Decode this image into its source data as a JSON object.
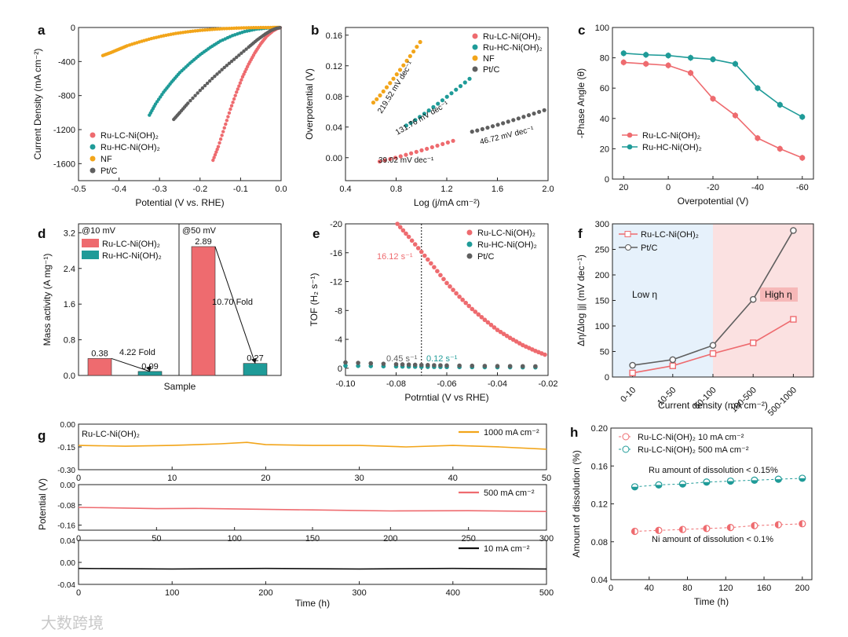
{
  "figure": {
    "watermark": "大数跨境"
  },
  "colors": {
    "red": "#ee6b6f",
    "teal": "#1f9b98",
    "orange": "#f2a51a",
    "gray": "#5f5f5f",
    "black": "#111111",
    "lowbg": "#e6f1fb",
    "highbg": "#fbe1e1"
  },
  "chart_data": [
    {
      "panel": "a",
      "type": "line",
      "xlabel": "Potential (V vs. RHE)",
      "ylabel": "Current Density (mA cm⁻²)",
      "xlim": [
        -0.5,
        0.0
      ],
      "ylim": [
        -1800,
        0
      ],
      "xticks": [
        "-0.5",
        "-0.4",
        "-0.3",
        "-0.2",
        "-0.1",
        "0.0"
      ],
      "yticks": [
        "0",
        "-400",
        "-800",
        "-1200",
        "-1600"
      ],
      "series": [
        {
          "name": "Ru-LC-Ni(OH)₂",
          "color": "red",
          "x": [
            -0.168,
            -0.155,
            -0.14,
            -0.125,
            -0.11,
            -0.095,
            -0.08,
            -0.065,
            -0.05,
            -0.035,
            -0.02,
            -0.01,
            0.0
          ],
          "y": [
            -1560,
            -1400,
            -1180,
            -960,
            -760,
            -580,
            -430,
            -300,
            -190,
            -100,
            -40,
            -12,
            0
          ]
        },
        {
          "name": "Ru-HC-Ni(OH)₂",
          "color": "teal",
          "x": [
            -0.325,
            -0.31,
            -0.29,
            -0.27,
            -0.25,
            -0.225,
            -0.2,
            -0.175,
            -0.15,
            -0.12,
            -0.09,
            -0.06,
            -0.03,
            0.0
          ],
          "y": [
            -1030,
            -900,
            -760,
            -640,
            -530,
            -420,
            -320,
            -235,
            -160,
            -95,
            -48,
            -18,
            -5,
            0
          ]
        },
        {
          "name": "NF",
          "color": "orange",
          "x": [
            -0.44,
            -0.42,
            -0.4,
            -0.38,
            -0.35,
            -0.32,
            -0.29,
            -0.26,
            -0.23,
            -0.2,
            -0.17,
            -0.14,
            -0.11,
            -0.08,
            -0.05,
            -0.02,
            0.0
          ],
          "y": [
            -330,
            -295,
            -255,
            -215,
            -170,
            -130,
            -97,
            -70,
            -50,
            -34,
            -22,
            -13,
            -7,
            -3,
            -1,
            0,
            0
          ]
        },
        {
          "name": "Pt/C",
          "color": "gray",
          "x": [
            -0.265,
            -0.25,
            -0.23,
            -0.2,
            -0.17,
            -0.14,
            -0.11,
            -0.08,
            -0.06,
            -0.04,
            -0.025,
            -0.012,
            0.0
          ],
          "y": [
            -1080,
            -1000,
            -890,
            -740,
            -600,
            -470,
            -350,
            -230,
            -150,
            -80,
            -36,
            -10,
            0
          ]
        }
      ]
    },
    {
      "panel": "b",
      "type": "scatter",
      "xlabel": "Log (j/mA cm⁻²)",
      "ylabel": "Overpotential (V)",
      "xlim": [
        0.4,
        2.0
      ],
      "ylim": [
        -0.03,
        0.17
      ],
      "xticks": [
        "0.4",
        "0.8",
        "1.2",
        "1.6",
        "2.0"
      ],
      "yticks": [
        "0.00",
        "0.04",
        "0.08",
        "0.12",
        "0.16"
      ],
      "series": [
        {
          "name": "Ru-LC-Ni(OH)₂",
          "color": "red",
          "x0": 0.67,
          "x1": 1.25,
          "y0": -0.005,
          "y1": 0.022,
          "slope_label": "39.02 mV dec⁻¹"
        },
        {
          "name": "Ru-HC-Ni(OH)₂",
          "color": "teal",
          "x0": 0.88,
          "x1": 1.38,
          "y0": 0.042,
          "y1": 0.103,
          "slope_label": "131.76 mV dec⁻¹"
        },
        {
          "name": "NF",
          "color": "orange",
          "x0": 0.62,
          "x1": 0.99,
          "y0": 0.072,
          "y1": 0.151,
          "slope_label": "219.52 mV dec⁻¹"
        },
        {
          "name": "Pt/C",
          "color": "gray",
          "x0": 1.4,
          "x1": 1.97,
          "y0": 0.034,
          "y1": 0.062,
          "slope_label": "46.72 mV dec⁻¹"
        }
      ]
    },
    {
      "panel": "c",
      "type": "line",
      "xlabel": "Overpotential (V)",
      "ylabel": "-Phase Angle (θ)",
      "xlim": [
        25,
        -65
      ],
      "ylim": [
        0,
        100
      ],
      "xticks": [
        "20",
        "0",
        "-20",
        "-40",
        "-60"
      ],
      "yticks": [
        "0",
        "20",
        "40",
        "60",
        "80",
        "100"
      ],
      "x": [
        20,
        10,
        0,
        -10,
        -20,
        -30,
        -40,
        -50,
        -60
      ],
      "series": [
        {
          "name": "Ru-LC-Ni(OH)₂",
          "color": "red",
          "values": [
            77,
            76,
            75,
            70,
            53,
            42,
            27,
            20,
            14
          ]
        },
        {
          "name": "Ru-HC-Ni(OH)₂",
          "color": "teal",
          "values": [
            83,
            82,
            81.5,
            80,
            79,
            76,
            60,
            49,
            41
          ]
        }
      ]
    },
    {
      "panel": "d",
      "type": "bar",
      "xlabel": "Sample",
      "ylabel": "Mass activity (A mg⁻¹)",
      "ylim": [
        0,
        3.4
      ],
      "yticks": [
        "0.0",
        "0.8",
        "1.6",
        "2.4",
        "3.2"
      ],
      "groups": [
        {
          "label": "@10 mV",
          "values": [
            0.38,
            0.09
          ],
          "value_labels": [
            "0.38",
            "0.09"
          ],
          "fold": "4.22 Fold"
        },
        {
          "label": "@50 mV",
          "values": [
            2.89,
            0.27
          ],
          "value_labels": [
            "2.89",
            "0.27"
          ],
          "fold": "10.70 Fold"
        }
      ],
      "series": [
        {
          "name": "Ru-LC-Ni(OH)₂",
          "color": "red"
        },
        {
          "name": "Ru-HC-Ni(OH)₂",
          "color": "teal"
        }
      ]
    },
    {
      "panel": "e",
      "type": "scatter",
      "xlabel": "Potrntial (V vs RHE)",
      "ylabel": "TOF (H₂ s⁻¹)",
      "xlim": [
        -0.1,
        -0.02
      ],
      "ylim": [
        1,
        -20
      ],
      "xticks": [
        "-0.10",
        "-0.08",
        "-0.06",
        "-0.04",
        "-0.02"
      ],
      "yticks": [
        "-20",
        "-16",
        "-12",
        "-8",
        "-4",
        "0"
      ],
      "marker_x": -0.07,
      "annotations": [
        "16.12 s⁻¹",
        "0.45 s⁻¹",
        "0.12 s⁻¹"
      ],
      "series": [
        {
          "name": "Ru-LC-Ni(OH)₂",
          "color": "red",
          "x": [
            -0.0795,
            -0.075,
            -0.07,
            -0.065,
            -0.06,
            -0.055,
            -0.05,
            -0.045,
            -0.04,
            -0.035,
            -0.03,
            -0.025,
            -0.02
          ],
          "y": [
            -20,
            -18.2,
            -16.12,
            -14.0,
            -11.8,
            -9.9,
            -8.2,
            -6.7,
            -5.3,
            -4.2,
            -3.2,
            -2.4,
            -1.7
          ]
        },
        {
          "name": "Ru-HC-Ni(OH)₂",
          "color": "teal",
          "x": [
            -0.1,
            -0.08,
            -0.07,
            -0.06,
            -0.04,
            -0.02
          ],
          "y": [
            -0.35,
            -0.25,
            -0.2,
            -0.17,
            -0.14,
            -0.12
          ]
        },
        {
          "name": "Pt/C",
          "color": "gray",
          "x": [
            -0.1,
            -0.08,
            -0.07,
            -0.06,
            -0.04,
            -0.02
          ],
          "y": [
            -0.8,
            -0.55,
            -0.45,
            -0.38,
            -0.3,
            -0.25
          ]
        }
      ]
    },
    {
      "panel": "f",
      "type": "line",
      "xlabel": "Current density (mA cm⁻²)",
      "ylabel": "Δη/Δlog |j| (mV dec⁻¹)",
      "ylim": [
        0,
        300
      ],
      "yticks": [
        "0",
        "50",
        "100",
        "150",
        "200",
        "250",
        "300"
      ],
      "categories": [
        "0-10",
        "10-50",
        "50-100",
        "100-500",
        "500-1000"
      ],
      "regions": [
        "Low η",
        "High η"
      ],
      "series": [
        {
          "name": "Ru-LC-Ni(OH)₂",
          "color": "red",
          "values": [
            8,
            22,
            46,
            67,
            113
          ]
        },
        {
          "name": "Pt/C",
          "color": "gray",
          "values": [
            23,
            34,
            62,
            152,
            287
          ]
        }
      ]
    },
    {
      "panel": "g",
      "type": "line",
      "xlabel": "Time (h)",
      "ylabel": "Potential (V)",
      "title": "Ru-LC-Ni(OH)₂",
      "subplots": [
        {
          "label": "1000 mA cm⁻²",
          "color": "orange",
          "xlim": [
            0,
            50
          ],
          "ylim": [
            -0.3,
            0.0
          ],
          "xticks": [
            "0",
            "10",
            "20",
            "30",
            "40",
            "50"
          ],
          "yticks": [
            "0.00",
            "-0.15",
            "-0.30"
          ],
          "x": [
            0,
            5,
            10,
            15,
            18,
            20,
            25,
            30,
            35,
            40,
            45,
            50
          ],
          "y": [
            -0.14,
            -0.145,
            -0.14,
            -0.13,
            -0.12,
            -0.135,
            -0.14,
            -0.14,
            -0.15,
            -0.14,
            -0.15,
            -0.165
          ]
        },
        {
          "label": "500 mA cm⁻²",
          "color": "red",
          "xlim": [
            0,
            300
          ],
          "ylim": [
            -0.18,
            0.0
          ],
          "xticks": [
            "0",
            "50",
            "100",
            "150",
            "200",
            "250",
            "300"
          ],
          "yticks": [
            "0.00",
            "-0.08",
            "-0.16"
          ],
          "x": [
            0,
            25,
            50,
            75,
            100,
            150,
            200,
            250,
            300
          ],
          "y": [
            -0.09,
            -0.092,
            -0.095,
            -0.094,
            -0.096,
            -0.1,
            -0.104,
            -0.103,
            -0.106
          ]
        },
        {
          "label": "10 mA cm⁻²",
          "color": "black",
          "xlim": [
            0,
            500
          ],
          "ylim": [
            -0.04,
            0.04
          ],
          "xticks": [
            "0",
            "100",
            "200",
            "300",
            "400",
            "500"
          ],
          "yticks": [
            "0.04",
            "0.00",
            "-0.04"
          ],
          "x": [
            0,
            100,
            200,
            300,
            400,
            500
          ],
          "y": [
            -0.011,
            -0.012,
            -0.011,
            -0.012,
            -0.011,
            -0.012
          ]
        }
      ]
    },
    {
      "panel": "h",
      "type": "scatter",
      "xlabel": "Time (h)",
      "ylabel": "Amount of dissolution (%)",
      "xlim": [
        0,
        210
      ],
      "ylim": [
        0.04,
        0.2
      ],
      "xticks": [
        "0",
        "40",
        "80",
        "120",
        "160",
        "200"
      ],
      "yticks": [
        "0.04",
        "0.08",
        "0.12",
        "0.16",
        "0.20"
      ],
      "annotations": [
        "Ru amount of dissolution < 0.15%",
        "Ni amount of dissolution < 0.1%"
      ],
      "series": [
        {
          "name": "Ru-LC-Ni(OH)₂ 10 mA cm⁻²",
          "color": "red",
          "x": [
            25,
            50,
            75,
            100,
            125,
            150,
            175,
            200
          ],
          "y": [
            0.091,
            0.092,
            0.093,
            0.094,
            0.095,
            0.097,
            0.098,
            0.099
          ]
        },
        {
          "name": "Ru-LC-Ni(OH)₂ 500 mA cm⁻²",
          "color": "teal",
          "x": [
            25,
            50,
            75,
            100,
            125,
            150,
            175,
            200
          ],
          "y": [
            0.138,
            0.14,
            0.141,
            0.143,
            0.144,
            0.145,
            0.146,
            0.147
          ]
        }
      ]
    }
  ]
}
